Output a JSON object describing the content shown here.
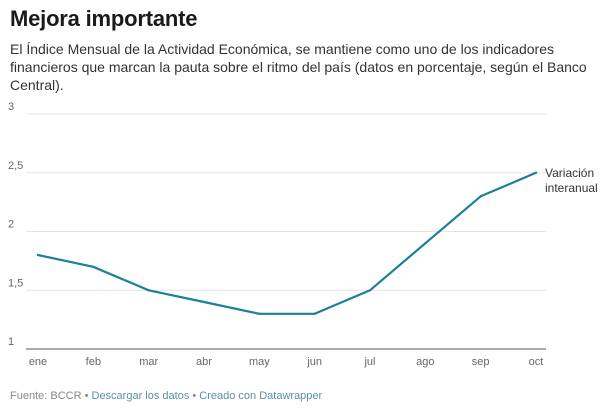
{
  "header": {
    "title": "Mejora importante",
    "subtitle": "El Índice Mensual de la Actividad Económica, se mantiene como uno de los indicadores financieros que marcan la pauta sobre el ritmo del país (datos en porcentaje, según el Banco Central)."
  },
  "footer": {
    "source": "Fuente: BCCR",
    "download_label": "Descargar los datos",
    "created_label": "Creado con Datawrapper",
    "separator": " • "
  },
  "colors": {
    "line": "#1a8196",
    "grid": "#e3e3e3",
    "baseline": "#555555"
  },
  "chart_data": {
    "type": "line",
    "title": "Mejora importante",
    "xlabel": "",
    "ylabel": "",
    "categories": [
      "ene",
      "feb",
      "mar",
      "abr",
      "may",
      "jun",
      "jul",
      "ago",
      "sep",
      "oct"
    ],
    "series": [
      {
        "name": "Variación interanual",
        "name_lines": [
          "Variación",
          "interanual"
        ],
        "values": [
          1.8,
          1.7,
          1.5,
          1.4,
          1.3,
          1.3,
          1.5,
          1.9,
          2.3,
          2.5
        ]
      }
    ],
    "ylim": [
      1,
      3
    ],
    "yticks": [
      1,
      1.5,
      2,
      2.5,
      3
    ],
    "ytick_labels": [
      "1",
      "1,5",
      "2",
      "2,5",
      "3"
    ],
    "grid": true,
    "legend": "end-of-line label"
  }
}
